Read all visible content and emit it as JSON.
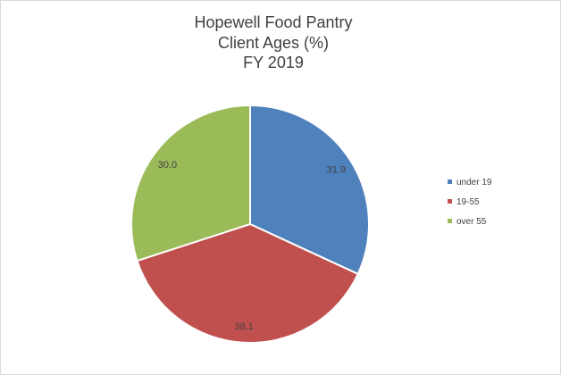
{
  "chart_data": {
    "type": "pie",
    "title_lines": [
      "Hopewell Food Pantry",
      "Client Ages (%)",
      "FY 2019"
    ],
    "categories": [
      "under 19",
      "19-55",
      "over 55"
    ],
    "values": [
      31.9,
      38.1,
      30.0
    ],
    "value_labels": [
      "31.9",
      "38.1",
      "30.0"
    ],
    "colors": [
      "#4F81BD",
      "#C0504D",
      "#9BBB59"
    ],
    "legend_position": "right",
    "start_angle": "12 o'clock",
    "direction": "clockwise"
  }
}
